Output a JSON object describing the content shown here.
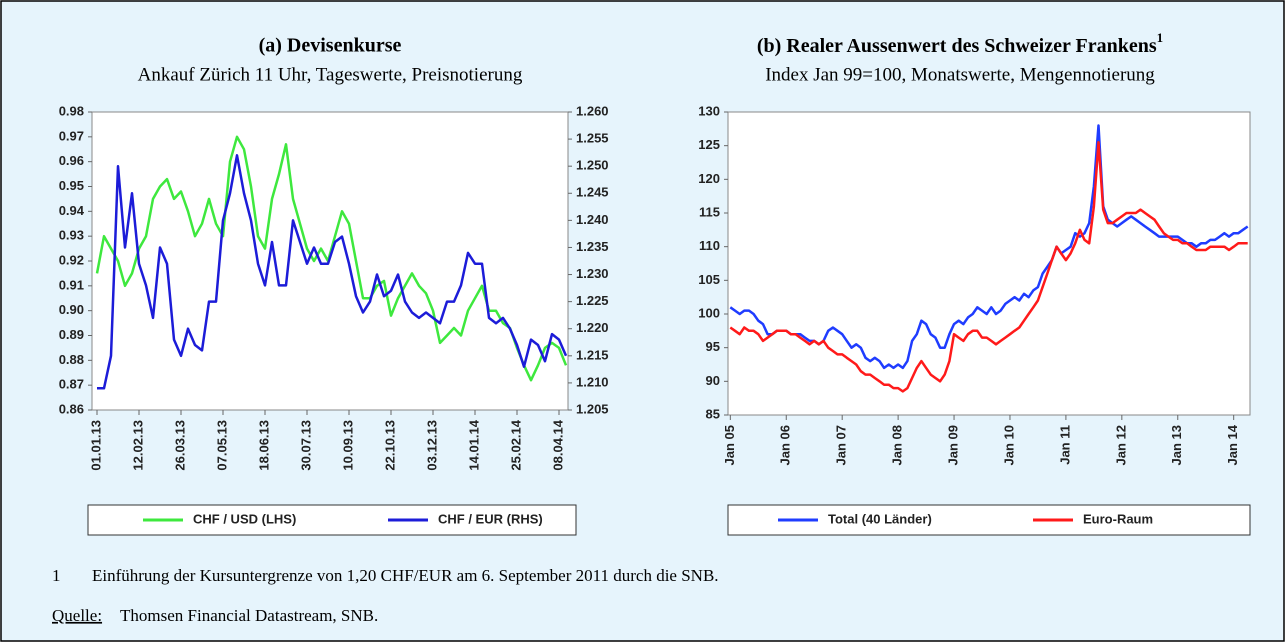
{
  "chart_data": [
    {
      "type": "line",
      "title": "(a) Devisenkurse",
      "subtitle": "Ankauf Zürich 11 Uhr, Tageswerte, Preisnotierung",
      "x": [
        "01.01.13",
        "08.01.13",
        "15.01.13",
        "22.01.13",
        "29.01.13",
        "05.02.13",
        "12.02.13",
        "19.02.13",
        "26.02.13",
        "05.03.13",
        "12.03.13",
        "19.03.13",
        "26.03.13",
        "02.04.13",
        "09.04.13",
        "16.04.13",
        "23.04.13",
        "30.04.13",
        "07.05.13",
        "14.05.13",
        "21.05.13",
        "28.05.13",
        "04.06.13",
        "11.06.13",
        "18.06.13",
        "25.06.13",
        "02.07.13",
        "09.07.13",
        "16.07.13",
        "23.07.13",
        "30.07.13",
        "06.08.13",
        "13.08.13",
        "20.08.13",
        "27.08.13",
        "03.09.13",
        "10.09.13",
        "17.09.13",
        "24.09.13",
        "01.10.13",
        "08.10.13",
        "15.10.13",
        "22.10.13",
        "29.10.13",
        "05.11.13",
        "12.11.13",
        "19.11.13",
        "26.11.13",
        "03.12.13",
        "10.12.13",
        "17.12.13",
        "24.12.13",
        "31.12.13",
        "07.01.14",
        "14.01.14",
        "21.01.14",
        "28.01.14",
        "04.02.14",
        "11.02.14",
        "18.02.14",
        "25.02.14",
        "04.03.14",
        "11.03.14",
        "18.03.14",
        "25.03.14",
        "01.04.14",
        "08.04.14",
        "15.04.14"
      ],
      "xlim": [
        "27.12.12",
        "17.04.14"
      ],
      "xticks": [
        "01.01.13",
        "12.02.13",
        "26.03.13",
        "07.05.13",
        "18.06.13",
        "30.07.13",
        "10.09.13",
        "22.10.13",
        "03.12.13",
        "14.01.14",
        "25.02.14",
        "08.04.14"
      ],
      "ylim": [
        0.86,
        0.98
      ],
      "yticks": [
        0.86,
        0.87,
        0.88,
        0.89,
        {
          "value": 0.9,
          "label": "0.90"
        },
        0.91,
        0.92,
        0.93,
        0.94,
        0.95,
        0.96,
        0.97,
        0.98
      ],
      "y2lim": [
        1.205,
        1.26
      ],
      "y2ticks": [
        1.205,
        {
          "value": 1.21,
          "label": "1.210"
        },
        1.215,
        {
          "value": 1.22,
          "label": "1.220"
        },
        1.225,
        {
          "value": 1.23,
          "label": "1.230"
        },
        1.235,
        {
          "value": 1.24,
          "label": "1.240"
        },
        1.245,
        {
          "value": 1.25,
          "label": "1.250"
        },
        1.255,
        {
          "value": 1.26,
          "label": "1.260"
        }
      ],
      "legend": "bottom",
      "series": [
        {
          "name": "CHF / USD (LHS)",
          "color": "#3ee83e",
          "values": [
            0.915,
            0.93,
            0.925,
            0.92,
            0.91,
            0.915,
            0.925,
            0.93,
            0.945,
            0.95,
            0.953,
            0.945,
            0.948,
            0.94,
            0.93,
            0.935,
            0.945,
            0.935,
            0.93,
            0.96,
            0.97,
            0.965,
            0.95,
            0.93,
            0.925,
            0.945,
            0.955,
            0.967,
            0.945,
            0.935,
            0.925,
            0.92,
            0.925,
            0.92,
            0.93,
            0.94,
            0.935,
            0.92,
            0.905,
            0.905,
            0.91,
            0.912,
            0.898,
            0.905,
            0.91,
            0.915,
            0.91,
            0.907,
            0.9,
            0.887,
            0.89,
            0.893,
            0.89,
            0.9,
            0.905,
            0.91,
            0.9,
            0.9,
            0.895,
            0.893,
            0.885,
            0.878,
            0.872,
            0.878,
            0.885,
            0.887,
            0.885,
            0.878
          ]
        },
        {
          "name": "CHF / EUR (RHS)",
          "color": "#1c1cd8",
          "axis": "y2",
          "values": [
            1.209,
            1.209,
            1.215,
            1.25,
            1.235,
            1.245,
            1.232,
            1.228,
            1.222,
            1.235,
            1.232,
            1.218,
            1.215,
            1.22,
            1.217,
            1.216,
            1.225,
            1.225,
            1.24,
            1.245,
            1.252,
            1.245,
            1.24,
            1.232,
            1.228,
            1.236,
            1.228,
            1.228,
            1.24,
            1.236,
            1.232,
            1.235,
            1.232,
            1.232,
            1.236,
            1.237,
            1.232,
            1.226,
            1.223,
            1.225,
            1.23,
            1.226,
            1.227,
            1.23,
            1.225,
            1.223,
            1.222,
            1.223,
            1.222,
            1.221,
            1.225,
            1.225,
            1.228,
            1.234,
            1.232,
            1.232,
            1.222,
            1.221,
            1.222,
            1.22,
            1.217,
            1.213,
            1.218,
            1.217,
            1.214,
            1.219,
            1.218,
            1.215
          ]
        }
      ]
    },
    {
      "type": "line",
      "title": "(b) Realer Aussenwert des Schweizer Frankens",
      "title_note": "1",
      "subtitle": "Index Jan 99=100, Monatswerte, Mengennotierung",
      "categories": [
        "Jan 05",
        null,
        null,
        null,
        null,
        null,
        null,
        null,
        null,
        null,
        null,
        null,
        "Jan 06",
        null,
        null,
        null,
        null,
        null,
        null,
        null,
        null,
        null,
        null,
        null,
        "Jan 07",
        null,
        null,
        null,
        null,
        null,
        null,
        null,
        null,
        null,
        null,
        null,
        "Jan 08",
        null,
        null,
        null,
        null,
        null,
        null,
        null,
        null,
        null,
        null,
        null,
        "Jan 09",
        null,
        null,
        null,
        null,
        null,
        null,
        null,
        null,
        null,
        null,
        null,
        "Jan 10",
        null,
        null,
        null,
        null,
        null,
        null,
        null,
        null,
        null,
        null,
        null,
        "Jan 11",
        null,
        null,
        null,
        null,
        null,
        null,
        null,
        null,
        null,
        null,
        null,
        "Jan 12",
        null,
        null,
        null,
        null,
        null,
        null,
        null,
        null,
        null,
        null,
        null,
        "Jan 13",
        null,
        null,
        null,
        null,
        null,
        null,
        null,
        null,
        null,
        null,
        null,
        "Jan 14",
        null,
        null,
        null
      ],
      "ylim": [
        85,
        130
      ],
      "yticks": [
        85,
        90,
        95,
        100,
        105,
        110,
        115,
        120,
        125,
        130
      ],
      "legend": "bottom",
      "series": [
        {
          "name": "Total (40 Länder)",
          "color": "#1f3cff",
          "values": [
            101,
            100.5,
            100,
            100.5,
            100.5,
            100,
            99,
            98.5,
            97,
            97,
            97.5,
            97.5,
            97.5,
            97,
            97,
            97,
            96.5,
            96,
            96,
            95.5,
            96,
            97.5,
            98,
            97.5,
            97,
            96,
            95,
            95.5,
            95,
            93.5,
            93,
            93.5,
            93,
            92,
            92.5,
            92,
            92.5,
            92,
            93,
            96,
            97,
            99,
            98.5,
            97,
            96.5,
            95,
            95,
            97,
            98.5,
            99,
            98.5,
            99.5,
            100,
            101,
            100.5,
            100,
            101,
            100,
            100.5,
            101.5,
            102,
            102.5,
            102,
            103,
            102.5,
            103.5,
            104,
            106,
            107,
            108,
            110,
            109,
            109.5,
            110,
            112,
            111.5,
            112,
            113.5,
            119,
            128,
            116,
            114,
            113.5,
            113,
            113.5,
            114,
            114.5,
            114,
            113.5,
            113,
            112.5,
            112,
            111.5,
            111.5,
            111.5,
            111.5,
            111.5,
            111,
            110.5,
            110.5,
            110,
            110.5,
            110.5,
            111,
            111,
            111.5,
            112,
            111.5,
            112,
            112,
            112.5,
            113
          ]
        },
        {
          "name": "Euro-Raum",
          "color": "#ff1a1a",
          "values": [
            98,
            97.5,
            97,
            98,
            97.5,
            97.5,
            97,
            96,
            96.5,
            97,
            97.5,
            97.5,
            97.5,
            97,
            97,
            96.5,
            96,
            95.5,
            96,
            95.5,
            96,
            95,
            94.5,
            94,
            94,
            93.5,
            93,
            92.5,
            91.5,
            91,
            91,
            90.5,
            90,
            89.5,
            89.5,
            89,
            89,
            88.5,
            89,
            90.5,
            92,
            93,
            92,
            91,
            90.5,
            90,
            91,
            93,
            97,
            96.5,
            96,
            97,
            97.5,
            97.5,
            96.5,
            96.5,
            96,
            95.5,
            96,
            96.5,
            97,
            97.5,
            98,
            99,
            100,
            101,
            102,
            104,
            106,
            108,
            110,
            109,
            108,
            109,
            110.5,
            112.5,
            111,
            110.5,
            116,
            125.5,
            115.5,
            113.5,
            113.5,
            114,
            114.5,
            115,
            115,
            115,
            115.5,
            115,
            114.5,
            114,
            113,
            112,
            111.5,
            111,
            111,
            110.5,
            110.5,
            110,
            109.5,
            109.5,
            109.5,
            110,
            110,
            110,
            110,
            109.5,
            110,
            110.5,
            110.5,
            110.5
          ]
        }
      ]
    }
  ],
  "footnote": {
    "number": "1",
    "text": "Einführung der Kursuntergrenze von 1,20 CHF/EUR am 6. September 2011 durch die SNB."
  },
  "source": {
    "label": "Quelle:",
    "text": "Thomsen Financial Datastream, SNB."
  }
}
